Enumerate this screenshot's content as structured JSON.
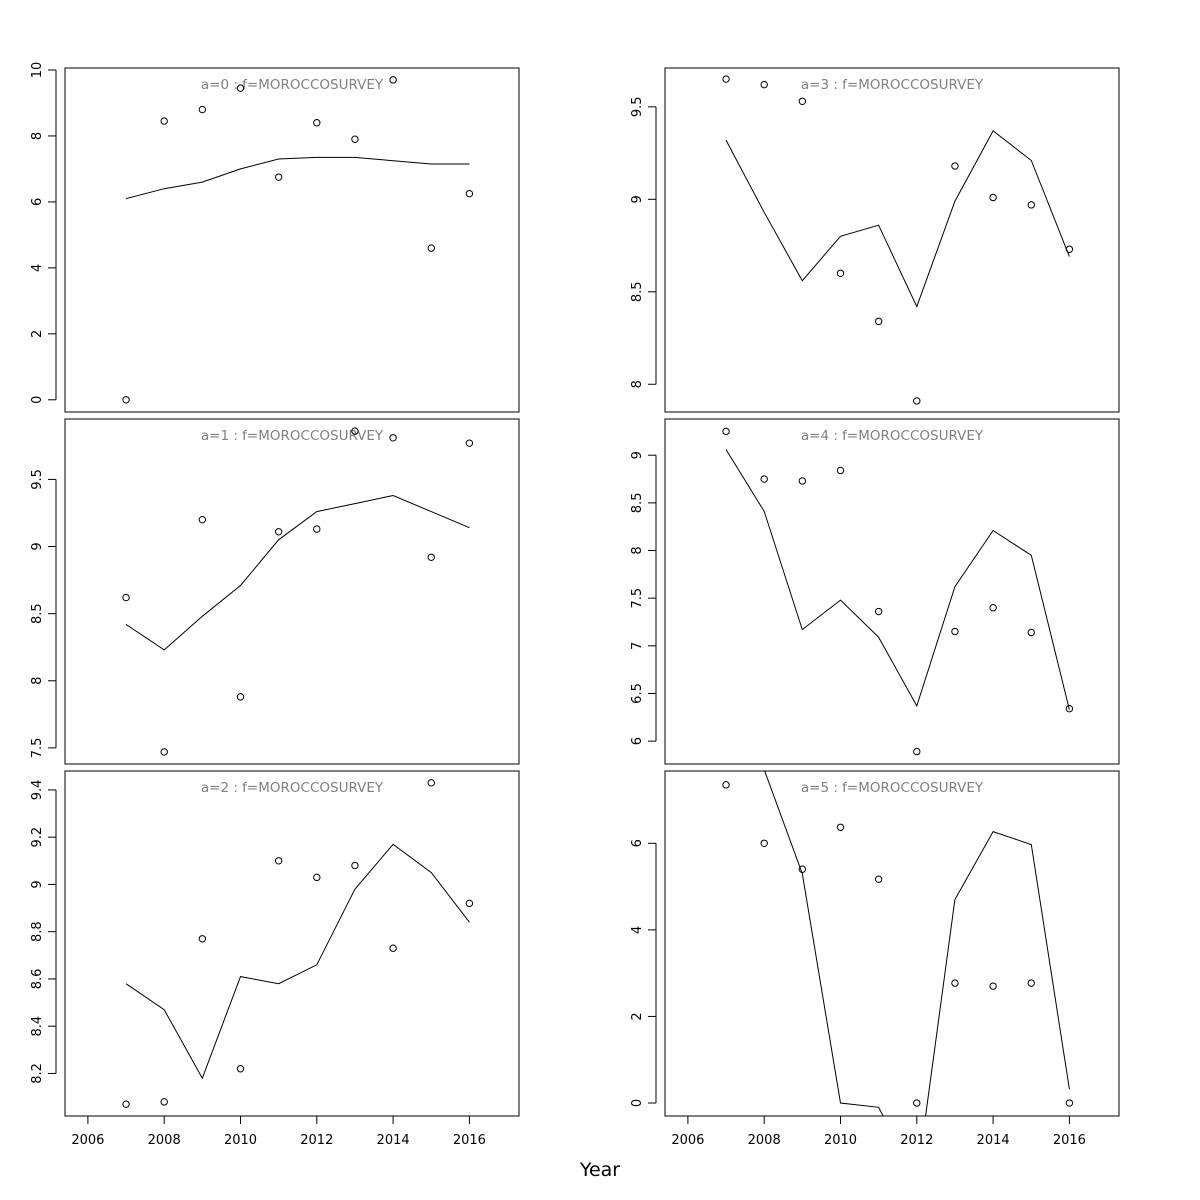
{
  "xlabel": "Year",
  "x_ticks": [
    2006,
    2008,
    2010,
    2012,
    2014,
    2016
  ],
  "colors": {
    "axes": "#000000",
    "panel_label": "#808080",
    "line": "#000000",
    "points": "#000000"
  },
  "chart_data": [
    {
      "type": "line",
      "title": "a=0  :  f=MOROCCOSURVEY",
      "x": [
        2007,
        2008,
        2009,
        2010,
        2011,
        2012,
        2013,
        2014,
        2015,
        2016
      ],
      "series": [
        {
          "kind": "line",
          "values": [
            6.1,
            6.4,
            6.6,
            7.0,
            7.3,
            7.35,
            7.35,
            7.25,
            7.15,
            7.15
          ]
        },
        {
          "kind": "points",
          "values": [
            0.0,
            8.45,
            8.8,
            9.45,
            6.75,
            8.4,
            7.9,
            9.7,
            4.6,
            6.25
          ]
        }
      ],
      "xlim": [
        2005.4,
        2017.3
      ],
      "ylim": [
        -0.37,
        10.06
      ],
      "y_ticks": [
        0,
        2,
        4,
        6,
        8,
        10
      ],
      "grid": false
    },
    {
      "type": "line",
      "title": "a=1  :  f=MOROCCOSURVEY",
      "x": [
        2007,
        2008,
        2009,
        2010,
        2011,
        2012,
        2013,
        2014,
        2015,
        2016
      ],
      "series": [
        {
          "kind": "line",
          "values": [
            8.42,
            8.23,
            8.48,
            8.71,
            9.05,
            9.26,
            9.32,
            9.38,
            9.26,
            9.14
          ]
        },
        {
          "kind": "points",
          "values": [
            8.62,
            7.47,
            9.2,
            7.88,
            9.11,
            9.13,
            9.86,
            9.81,
            8.92,
            9.77
          ]
        }
      ],
      "xlim": [
        2005.4,
        2017.3
      ],
      "ylim": [
        7.38,
        9.95
      ],
      "y_ticks": [
        7.5,
        8.0,
        8.5,
        9.0,
        9.5
      ],
      "grid": false
    },
    {
      "type": "line",
      "title": "a=2  :  f=MOROCCOSURVEY",
      "x": [
        2007,
        2008,
        2009,
        2010,
        2011,
        2012,
        2013,
        2014,
        2015,
        2016
      ],
      "series": [
        {
          "kind": "line",
          "values": [
            8.58,
            8.47,
            8.18,
            8.61,
            8.58,
            8.66,
            8.98,
            9.17,
            9.05,
            8.84
          ]
        },
        {
          "kind": "points",
          "values": [
            8.07,
            8.08,
            8.77,
            8.22,
            9.1,
            9.03,
            9.08,
            8.73,
            9.43,
            8.92
          ]
        }
      ],
      "xlim": [
        2005.4,
        2017.3
      ],
      "ylim": [
        8.02,
        9.48
      ],
      "y_ticks": [
        8.2,
        8.4,
        8.6,
        8.8,
        9.0,
        9.2,
        9.4
      ],
      "grid": false
    },
    {
      "type": "line",
      "title": "a=3  :  f=MOROCCOSURVEY",
      "x": [
        2007,
        2008,
        2009,
        2010,
        2011,
        2012,
        2013,
        2014,
        2015,
        2016
      ],
      "series": [
        {
          "kind": "line",
          "values": [
            9.32,
            8.93,
            8.56,
            8.8,
            8.86,
            8.42,
            8.99,
            9.37,
            9.21,
            8.69
          ]
        },
        {
          "kind": "points",
          "values": [
            9.65,
            9.62,
            9.53,
            8.6,
            8.34,
            7.91,
            9.18,
            9.01,
            8.97,
            8.73
          ]
        }
      ],
      "xlim": [
        2005.4,
        2017.3
      ],
      "ylim": [
        7.85,
        9.71
      ],
      "y_ticks": [
        8.0,
        8.5,
        9.0,
        9.5
      ],
      "grid": false
    },
    {
      "type": "line",
      "title": "a=4  :  f=MOROCCOSURVEY",
      "x": [
        2007,
        2008,
        2009,
        2010,
        2011,
        2012,
        2013,
        2014,
        2015,
        2016
      ],
      "series": [
        {
          "kind": "line",
          "values": [
            9.06,
            8.41,
            7.17,
            7.48,
            7.09,
            6.37,
            7.62,
            8.21,
            7.95,
            6.33
          ]
        },
        {
          "kind": "points",
          "values": [
            9.25,
            8.75,
            8.73,
            8.84,
            7.36,
            5.89,
            7.15,
            7.4,
            7.14,
            6.34
          ]
        }
      ],
      "xlim": [
        2005.4,
        2017.3
      ],
      "ylim": [
        5.76,
        9.38
      ],
      "y_ticks": [
        6.0,
        6.5,
        7.0,
        7.5,
        8.0,
        8.5,
        9.0
      ],
      "grid": false
    },
    {
      "type": "line",
      "title": "a=5  :  f=MOROCCOSURVEY",
      "x": [
        2007,
        2008,
        2009,
        2010,
        2011,
        2012,
        2013,
        2014,
        2015,
        2016
      ],
      "series": [
        {
          "kind": "line",
          "values": [
            8.6,
            7.7,
            5.3,
            0.0,
            -0.1,
            -1.8,
            4.7,
            6.27,
            5.97,
            0.32
          ]
        },
        {
          "kind": "points",
          "values": [
            7.35,
            6.0,
            5.4,
            6.37,
            5.17,
            0.0,
            2.77,
            2.7,
            2.77,
            0.0
          ]
        }
      ],
      "xlim": [
        2005.4,
        2017.3
      ],
      "ylim": [
        -0.3,
        7.67
      ],
      "y_ticks": [
        0,
        2,
        4,
        6
      ],
      "grid": false
    }
  ]
}
